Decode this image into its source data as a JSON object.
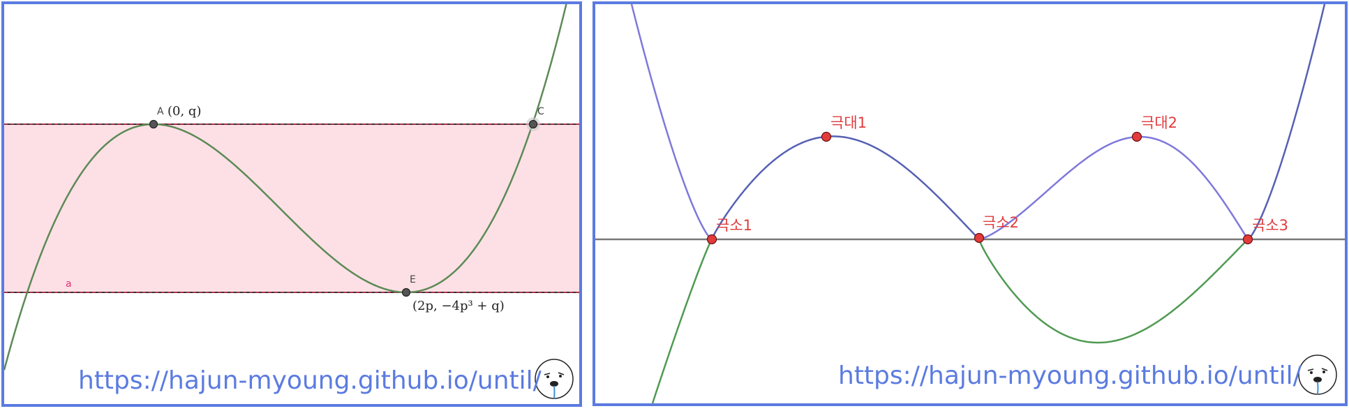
{
  "left_panel": {
    "points": {
      "A": {
        "name": "A",
        "coord": "(0, q)"
      },
      "C": {
        "name": "C"
      },
      "E": {
        "name": "E",
        "coord": "(2p, −4p³ + q)"
      }
    },
    "line_label": "a",
    "url": "https://hajun-myoung.github.io/until/"
  },
  "right_panel": {
    "labels": {
      "min1": "극소1",
      "max1": "극대1",
      "min2": "극소2",
      "max2": "극대2",
      "min3": "극소3"
    },
    "url": "https://hajun-myoung.github.io/until/"
  },
  "colors": {
    "border": "#5b7be0",
    "curve_green": "#5c8a55",
    "band_fill": "#fde0e6",
    "band_line": "#c0304a",
    "purple": "#7f78db",
    "dark_blue": "#5660b4",
    "green": "#4f9a52",
    "point_red": "#e23b3b"
  }
}
